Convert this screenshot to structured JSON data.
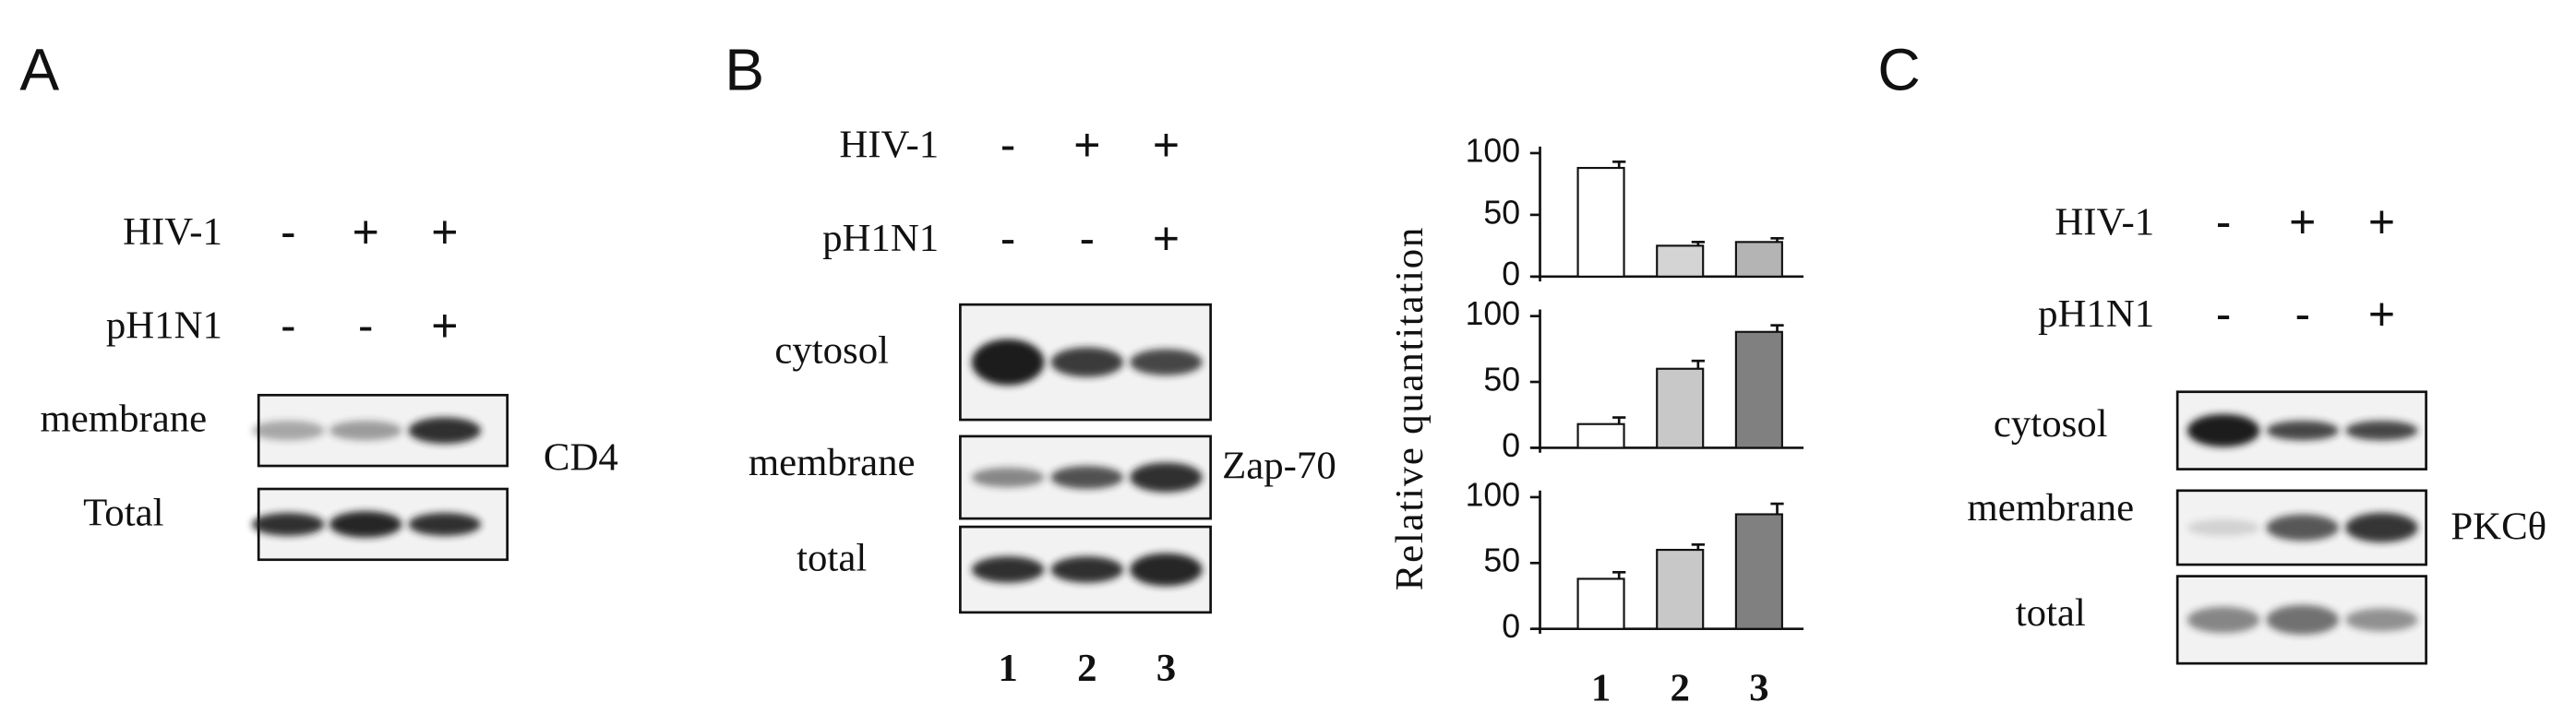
{
  "panels": [
    {
      "label": "A",
      "conditions": [
        {
          "name": "HIV-1",
          "signs": [
            "-",
            "+",
            "+"
          ]
        },
        {
          "name": "pH1N1",
          "signs": [
            "-",
            "-",
            "+"
          ]
        }
      ],
      "blots": [
        "membrane",
        "Total"
      ],
      "protein": "CD4"
    },
    {
      "label": "B",
      "conditions": [
        {
          "name": "HIV-1",
          "signs": [
            "-",
            "+",
            "+"
          ]
        },
        {
          "name": "pH1N1",
          "signs": [
            "-",
            "-",
            "+"
          ]
        }
      ],
      "blots": [
        "cytosol",
        "membrane",
        "total"
      ],
      "protein": "Zap-70",
      "lanes": [
        "1",
        "2",
        "3"
      ]
    },
    {
      "label": "C",
      "conditions": [
        {
          "name": "HIV-1",
          "signs": [
            "-",
            "+",
            "+"
          ]
        },
        {
          "name": "pH1N1",
          "signs": [
            "-",
            "-",
            "+"
          ]
        }
      ],
      "blots": [
        "cytosol",
        "membrane",
        "total"
      ],
      "protein": "PKCθ"
    }
  ],
  "chart_data": [
    {
      "type": "bar",
      "categories": [
        null,
        null,
        null
      ],
      "values": [
        88,
        25,
        28
      ],
      "errors": [
        5,
        3,
        3
      ],
      "colors": [
        "#ffffff",
        "#d4d4d4",
        "#b4b4b4"
      ],
      "ylim": [
        0,
        100
      ],
      "yticks": [
        0,
        50,
        100
      ]
    },
    {
      "type": "bar",
      "ylabel": "Relative quantitation",
      "categories": [
        null,
        null,
        null
      ],
      "values": [
        18,
        60,
        88
      ],
      "errors": [
        5,
        6,
        5
      ],
      "colors": [
        "#ffffff",
        "#c8c8c8",
        "#808080"
      ],
      "ylim": [
        0,
        100
      ],
      "yticks": [
        0,
        50,
        100
      ]
    },
    {
      "type": "bar",
      "categories": [
        "1",
        "2",
        "3"
      ],
      "values": [
        38,
        60,
        87
      ],
      "errors": [
        5,
        4,
        8
      ],
      "colors": [
        "#ffffff",
        "#c8c8c8",
        "#808080"
      ],
      "ylim": [
        0,
        100
      ],
      "yticks": [
        0,
        50,
        100
      ]
    }
  ]
}
